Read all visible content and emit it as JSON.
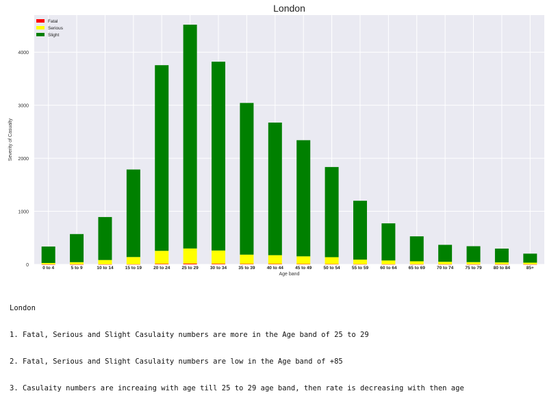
{
  "chart_data": {
    "type": "bar",
    "stacked": true,
    "title": "London",
    "xlabel": "Age band",
    "ylabel": "Severity of Casualty",
    "ylim": [
      0,
      4700
    ],
    "yticks": [
      0,
      1000,
      2000,
      3000,
      4000
    ],
    "grid": true,
    "legend_position": "top-left",
    "categories": [
      "0 to 4",
      "5 to 9",
      "10 to 14",
      "15 to 19",
      "20 to 24",
      "25 to 29",
      "30 to 34",
      "35 to 39",
      "40 to 44",
      "45 to 49",
      "50 to 54",
      "55 to 59",
      "60 to 64",
      "65 to 69",
      "70 to 74",
      "75 to 79",
      "80 to 84",
      "85+"
    ],
    "series": [
      {
        "name": "Fatal",
        "color": "#ff0000",
        "values": [
          1,
          1,
          2,
          3,
          10,
          14,
          11,
          8,
          8,
          6,
          5,
          4,
          3,
          3,
          3,
          2,
          2,
          2
        ]
      },
      {
        "name": "Serious",
        "color": "#ffff00",
        "values": [
          25,
          40,
          80,
          135,
          245,
          285,
          250,
          175,
          165,
          145,
          130,
          85,
          70,
          55,
          45,
          40,
          35,
          30
        ]
      },
      {
        "name": "Slight",
        "color": "#008000",
        "values": [
          310,
          530,
          810,
          1650,
          3500,
          4220,
          3560,
          2860,
          2500,
          2190,
          1700,
          1110,
          700,
          470,
          320,
          300,
          260,
          170
        ]
      }
    ]
  },
  "notes": {
    "lines": [
      "London",
      "1. Fatal, Serious and Slight Casulaity numbers are more in the Age band of 25 to 29",
      "2. Fatal, Serious and Slight Casulaity numbers are low in the Age band of +85",
      "3. Casulaity numbers are increaing with age till 25 to 29 age band, then rate is decreasing with then age"
    ]
  }
}
